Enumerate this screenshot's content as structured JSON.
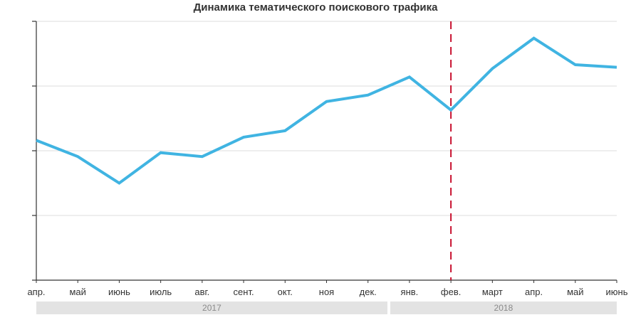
{
  "chart_data": {
    "type": "line",
    "title": "Динамика тематического поискового трафика",
    "categories": [
      "апр.",
      "май",
      "июнь",
      "июль",
      "авг.",
      "сент.",
      "окт.",
      "ноя",
      "дек.",
      "янв.",
      "фев.",
      "март",
      "апр.",
      "май",
      "июнь"
    ],
    "series": [
      {
        "values": [
          2.16,
          1.91,
          1.5,
          1.97,
          1.91,
          2.21,
          2.31,
          2.76,
          2.86,
          3.14,
          2.63,
          3.27,
          3.74,
          3.33,
          3.29
        ]
      }
    ],
    "ylim": [
      0,
      4
    ],
    "y_tick_labels_shown": false,
    "grid": "horizontal",
    "marker": {
      "category_index": 10,
      "category": "фев.",
      "style": "dashed"
    },
    "year_groups": [
      {
        "label": "2017",
        "from_index": 0,
        "to_index": 9
      },
      {
        "label": "2018",
        "from_index": 10,
        "to_index": 14
      }
    ],
    "colors": {
      "line": "#40b4e2",
      "marker": "#c8102e",
      "grid": "#dddddd",
      "axis": "#333333",
      "band": "#e3e3e3"
    }
  }
}
